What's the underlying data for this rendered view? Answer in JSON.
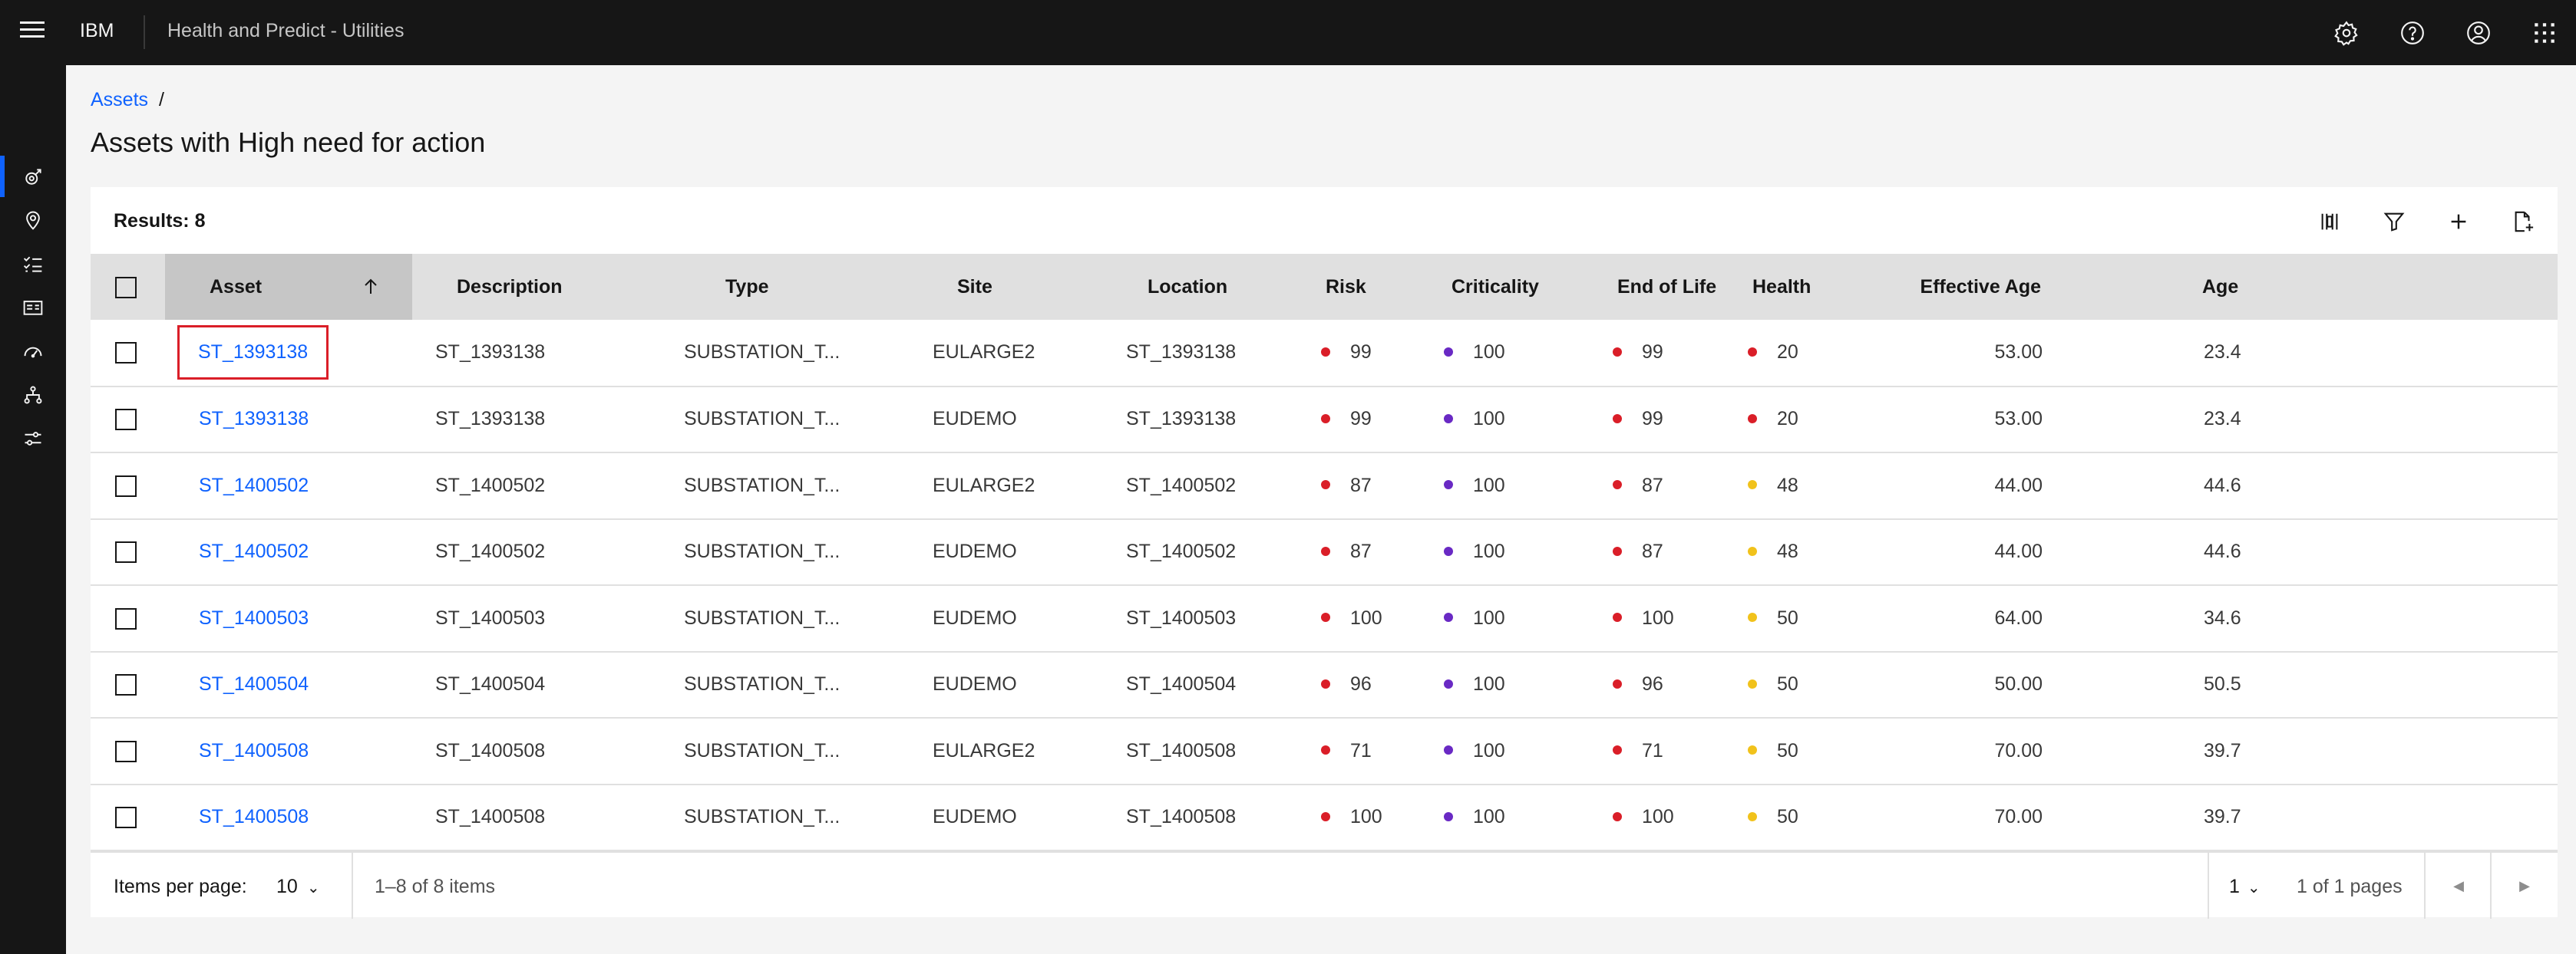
{
  "header": {
    "brand": "IBM",
    "product": "Health and Predict - Utilities",
    "icons": [
      "settings-icon",
      "help-icon",
      "user-icon",
      "app-switcher-icon"
    ]
  },
  "sidenav": {
    "items": [
      "dashboard-icon",
      "location-icon",
      "checklist-icon",
      "card-icon",
      "gauge-icon",
      "hierarchy-icon",
      "settings-sliders-icon"
    ]
  },
  "breadcrumb": {
    "link": "Assets",
    "separator": "/"
  },
  "page": {
    "title": "Assets with High need for action"
  },
  "toolbar": {
    "results": "Results: 8",
    "icons": [
      "columns-icon",
      "filter-icon",
      "add-icon",
      "export-icon"
    ]
  },
  "table": {
    "columns": [
      "Asset",
      "Description",
      "Type",
      "Site",
      "Location",
      "Risk",
      "Criticality",
      "End of Life",
      "Health",
      "Effective Age",
      "Age"
    ],
    "sort_column": "Asset",
    "rows": [
      {
        "asset": "ST_1393138",
        "description": "ST_1393138",
        "type": "SUBSTATION_T...",
        "site": "EULARGE2",
        "location": "ST_1393138",
        "risk": "99",
        "criticality": "100",
        "eol": "99",
        "health": "20",
        "effective_age": "53.00",
        "age": "23.4"
      },
      {
        "asset": "ST_1393138",
        "description": "ST_1393138",
        "type": "SUBSTATION_T...",
        "site": "EUDEMO",
        "location": "ST_1393138",
        "risk": "99",
        "criticality": "100",
        "eol": "99",
        "health": "20",
        "effective_age": "53.00",
        "age": "23.4"
      },
      {
        "asset": "ST_1400502",
        "description": "ST_1400502",
        "type": "SUBSTATION_T...",
        "site": "EULARGE2",
        "location": "ST_1400502",
        "risk": "87",
        "criticality": "100",
        "eol": "87",
        "health": "48",
        "effective_age": "44.00",
        "age": "44.6"
      },
      {
        "asset": "ST_1400502",
        "description": "ST_1400502",
        "type": "SUBSTATION_T...",
        "site": "EUDEMO",
        "location": "ST_1400502",
        "risk": "87",
        "criticality": "100",
        "eol": "87",
        "health": "48",
        "effective_age": "44.00",
        "age": "44.6"
      },
      {
        "asset": "ST_1400503",
        "description": "ST_1400503",
        "type": "SUBSTATION_T...",
        "site": "EUDEMO",
        "location": "ST_1400503",
        "risk": "100",
        "criticality": "100",
        "eol": "100",
        "health": "50",
        "effective_age": "64.00",
        "age": "34.6"
      },
      {
        "asset": "ST_1400504",
        "description": "ST_1400504",
        "type": "SUBSTATION_T...",
        "site": "EUDEMO",
        "location": "ST_1400504",
        "risk": "96",
        "criticality": "100",
        "eol": "96",
        "health": "50",
        "effective_age": "50.00",
        "age": "50.5"
      },
      {
        "asset": "ST_1400508",
        "description": "ST_1400508",
        "type": "SUBSTATION_T...",
        "site": "EULARGE2",
        "location": "ST_1400508",
        "risk": "71",
        "criticality": "100",
        "eol": "71",
        "health": "50",
        "effective_age": "70.00",
        "age": "39.7"
      },
      {
        "asset": "ST_1400508",
        "description": "ST_1400508",
        "type": "SUBSTATION_T...",
        "site": "EUDEMO",
        "location": "ST_1400508",
        "risk": "100",
        "criticality": "100",
        "eol": "100",
        "health": "50",
        "effective_age": "70.00",
        "age": "39.7"
      }
    ]
  },
  "colors": {
    "risk": "#da1e28",
    "criticality": "#6929c4",
    "end_of_life": "#da1e28",
    "health_low": "#da1e28",
    "health_medium": "#f1c21b",
    "highlight_border": "#da1e28"
  },
  "pagination": {
    "items_per_page_label": "Items per page:",
    "items_per_page": "10",
    "range": "1–8 of 8 items",
    "page": "1",
    "pages_of": "1 of 1 pages"
  }
}
